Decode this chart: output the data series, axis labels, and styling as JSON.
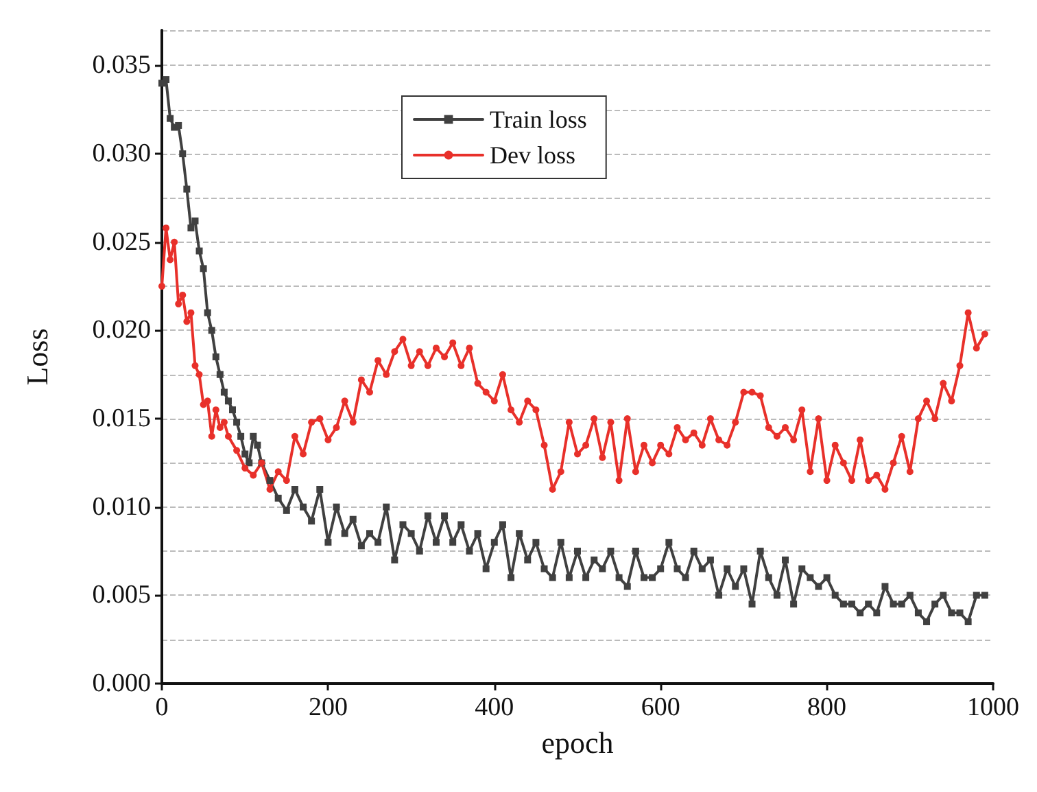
{
  "chart_data": {
    "type": "line",
    "xlabel": "epoch",
    "ylabel": "Loss",
    "xlim": [
      0,
      1000
    ],
    "xticks": [
      0,
      200,
      400,
      600,
      800,
      1000
    ],
    "ylim": [
      0,
      0.037
    ],
    "yticks": [
      {
        "value": 0,
        "label": "0.000"
      },
      {
        "value": 0.005,
        "label": "0.005"
      },
      {
        "value": 0.01,
        "label": "0.010"
      },
      {
        "value": 0.015,
        "label": "0.015"
      },
      {
        "value": 0.02,
        "label": "0.020"
      },
      {
        "value": 0.025,
        "label": "0.025"
      },
      {
        "value": 0.03,
        "label": "0.030"
      },
      {
        "value": 0.035,
        "label": "0.035"
      }
    ],
    "grid": "y",
    "legend": "top",
    "line_style": "solid",
    "series": [
      {
        "name": "Train loss",
        "color": "#404040",
        "marker": "square",
        "x": [
          0,
          5,
          10,
          15,
          20,
          25,
          30,
          35,
          40,
          45,
          50,
          55,
          60,
          65,
          70,
          75,
          80,
          85,
          90,
          95,
          100,
          105,
          110,
          115,
          120,
          130,
          140,
          150,
          160,
          170,
          180,
          190,
          200,
          210,
          220,
          230,
          240,
          250,
          260,
          270,
          280,
          290,
          300,
          310,
          320,
          330,
          340,
          350,
          360,
          370,
          380,
          390,
          400,
          410,
          420,
          430,
          440,
          450,
          460,
          470,
          480,
          490,
          500,
          510,
          520,
          530,
          540,
          550,
          560,
          570,
          580,
          590,
          600,
          610,
          620,
          630,
          640,
          650,
          660,
          670,
          680,
          690,
          700,
          710,
          720,
          730,
          740,
          750,
          760,
          770,
          780,
          790,
          800,
          810,
          820,
          830,
          840,
          850,
          860,
          870,
          880,
          890,
          900,
          910,
          920,
          930,
          940,
          950,
          960,
          970,
          980,
          990
        ],
        "values": [
          0.034,
          0.0342,
          0.032,
          0.0315,
          0.0316,
          0.03,
          0.028,
          0.0258,
          0.0262,
          0.0245,
          0.0235,
          0.021,
          0.02,
          0.0185,
          0.0175,
          0.0165,
          0.016,
          0.0155,
          0.0148,
          0.014,
          0.013,
          0.0125,
          0.014,
          0.0135,
          0.0125,
          0.0115,
          0.0105,
          0.0098,
          0.011,
          0.01,
          0.0092,
          0.011,
          0.008,
          0.01,
          0.0085,
          0.0093,
          0.0078,
          0.0085,
          0.008,
          0.01,
          0.007,
          0.009,
          0.0085,
          0.0075,
          0.0095,
          0.008,
          0.0095,
          0.008,
          0.009,
          0.0075,
          0.0085,
          0.0065,
          0.008,
          0.009,
          0.006,
          0.0085,
          0.007,
          0.008,
          0.0065,
          0.006,
          0.008,
          0.006,
          0.0075,
          0.006,
          0.007,
          0.0065,
          0.0075,
          0.006,
          0.0055,
          0.0075,
          0.006,
          0.006,
          0.0065,
          0.008,
          0.0065,
          0.006,
          0.0075,
          0.0065,
          0.007,
          0.005,
          0.0065,
          0.0055,
          0.0065,
          0.0045,
          0.0075,
          0.006,
          0.005,
          0.007,
          0.0045,
          0.0065,
          0.006,
          0.0055,
          0.006,
          0.005,
          0.0045,
          0.0045,
          0.004,
          0.0045,
          0.004,
          0.0055,
          0.0045,
          0.0045,
          0.005,
          0.004,
          0.0035,
          0.0045,
          0.005,
          0.004,
          0.004,
          0.0035,
          0.005,
          0.005
        ]
      },
      {
        "name": "Dev loss",
        "color": "#e8302a",
        "marker": "circle",
        "x": [
          0,
          5,
          10,
          15,
          20,
          25,
          30,
          35,
          40,
          45,
          50,
          55,
          60,
          65,
          70,
          75,
          80,
          90,
          100,
          110,
          120,
          130,
          140,
          150,
          160,
          170,
          180,
          190,
          200,
          210,
          220,
          230,
          240,
          250,
          260,
          270,
          280,
          290,
          300,
          310,
          320,
          330,
          340,
          350,
          360,
          370,
          380,
          390,
          400,
          410,
          420,
          430,
          440,
          450,
          460,
          470,
          480,
          490,
          500,
          510,
          520,
          530,
          540,
          550,
          560,
          570,
          580,
          590,
          600,
          610,
          620,
          630,
          640,
          650,
          660,
          670,
          680,
          690,
          700,
          710,
          720,
          730,
          740,
          750,
          760,
          770,
          780,
          790,
          800,
          810,
          820,
          830,
          840,
          850,
          860,
          870,
          880,
          890,
          900,
          910,
          920,
          930,
          940,
          950,
          960,
          970,
          980,
          990
        ],
        "values": [
          0.0225,
          0.0258,
          0.024,
          0.025,
          0.0215,
          0.022,
          0.0205,
          0.021,
          0.018,
          0.0175,
          0.0158,
          0.016,
          0.014,
          0.0155,
          0.0145,
          0.0148,
          0.014,
          0.0132,
          0.0122,
          0.0118,
          0.0125,
          0.011,
          0.012,
          0.0115,
          0.014,
          0.013,
          0.0148,
          0.015,
          0.0138,
          0.0145,
          0.016,
          0.0148,
          0.0172,
          0.0165,
          0.0183,
          0.0175,
          0.0188,
          0.0195,
          0.018,
          0.0188,
          0.018,
          0.019,
          0.0185,
          0.0193,
          0.018,
          0.019,
          0.017,
          0.0165,
          0.016,
          0.0175,
          0.0155,
          0.0148,
          0.016,
          0.0155,
          0.0135,
          0.011,
          0.012,
          0.0148,
          0.013,
          0.0135,
          0.015,
          0.0128,
          0.0148,
          0.0115,
          0.015,
          0.012,
          0.0135,
          0.0125,
          0.0135,
          0.013,
          0.0145,
          0.0138,
          0.0142,
          0.0135,
          0.015,
          0.0138,
          0.0135,
          0.0148,
          0.0165,
          0.0165,
          0.0163,
          0.0145,
          0.014,
          0.0145,
          0.0138,
          0.0155,
          0.012,
          0.015,
          0.0115,
          0.0135,
          0.0125,
          0.0115,
          0.0138,
          0.0115,
          0.0118,
          0.011,
          0.0125,
          0.014,
          0.012,
          0.015,
          0.016,
          0.015,
          0.017,
          0.016,
          0.018,
          0.021,
          0.019,
          0.0198
        ]
      }
    ]
  }
}
